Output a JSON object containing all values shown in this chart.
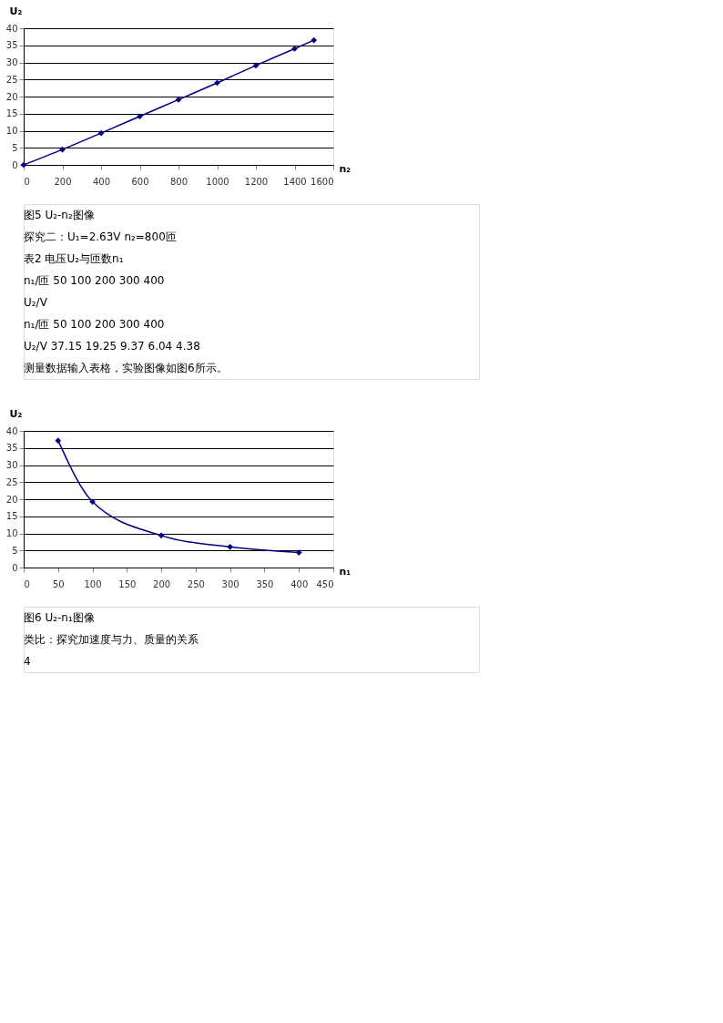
{
  "chart_data": [
    {
      "type": "line",
      "xlabel": "n₂",
      "ylabel": "U₂",
      "x": [
        0,
        200,
        400,
        600,
        800,
        1000,
        1200,
        1400,
        1500
      ],
      "series": [
        {
          "color": "#000080",
          "values": [
            0,
            4.5,
            9.3,
            14.2,
            19.1,
            24,
            29.1,
            34,
            36.5
          ]
        }
      ],
      "xlim": [
        0,
        1600
      ],
      "xticks": [
        0,
        200,
        400,
        600,
        800,
        1000,
        1200,
        1400,
        1600
      ],
      "ylim": [
        0,
        40
      ],
      "yticks": [
        0,
        5,
        10,
        15,
        20,
        25,
        30,
        35,
        40
      ],
      "grid": "y",
      "marker": "diamond",
      "line_style": "solid",
      "annotations": [
        "图5  U₂-n₂图像",
        "探究二：U₁=2.63V  n₂=800匝",
        "表2  电压U₂与匝数n₁",
        "n₁/匝    50    100    200    300    400",
        "U₂/V",
        "n₁/匝    50    100    200    300    400",
        "U₂/V    37.15    19.25    9.37    6.04    4.38",
        "测量数据输入表格，实验图像如图6所示。"
      ]
    },
    {
      "type": "line",
      "xlabel": "n₁",
      "ylabel": "U₂",
      "x": [
        50,
        100,
        200,
        300,
        400
      ],
      "series": [
        {
          "color": "#000080",
          "values": [
            37.15,
            19.25,
            9.37,
            6.04,
            4.38
          ]
        }
      ],
      "xlim": [
        0,
        450
      ],
      "xticks": [
        0,
        50,
        100,
        150,
        200,
        250,
        300,
        350,
        400,
        450
      ],
      "ylim": [
        0,
        40
      ],
      "yticks": [
        0,
        5,
        10,
        15,
        20,
        25,
        30,
        35,
        40
      ],
      "grid": "y",
      "marker": "diamond",
      "line_style": "solid",
      "annotations": [
        "图6  U₂-n₁图像",
        "类比：探究加速度与力、质量的关系",
        "4"
      ]
    }
  ]
}
